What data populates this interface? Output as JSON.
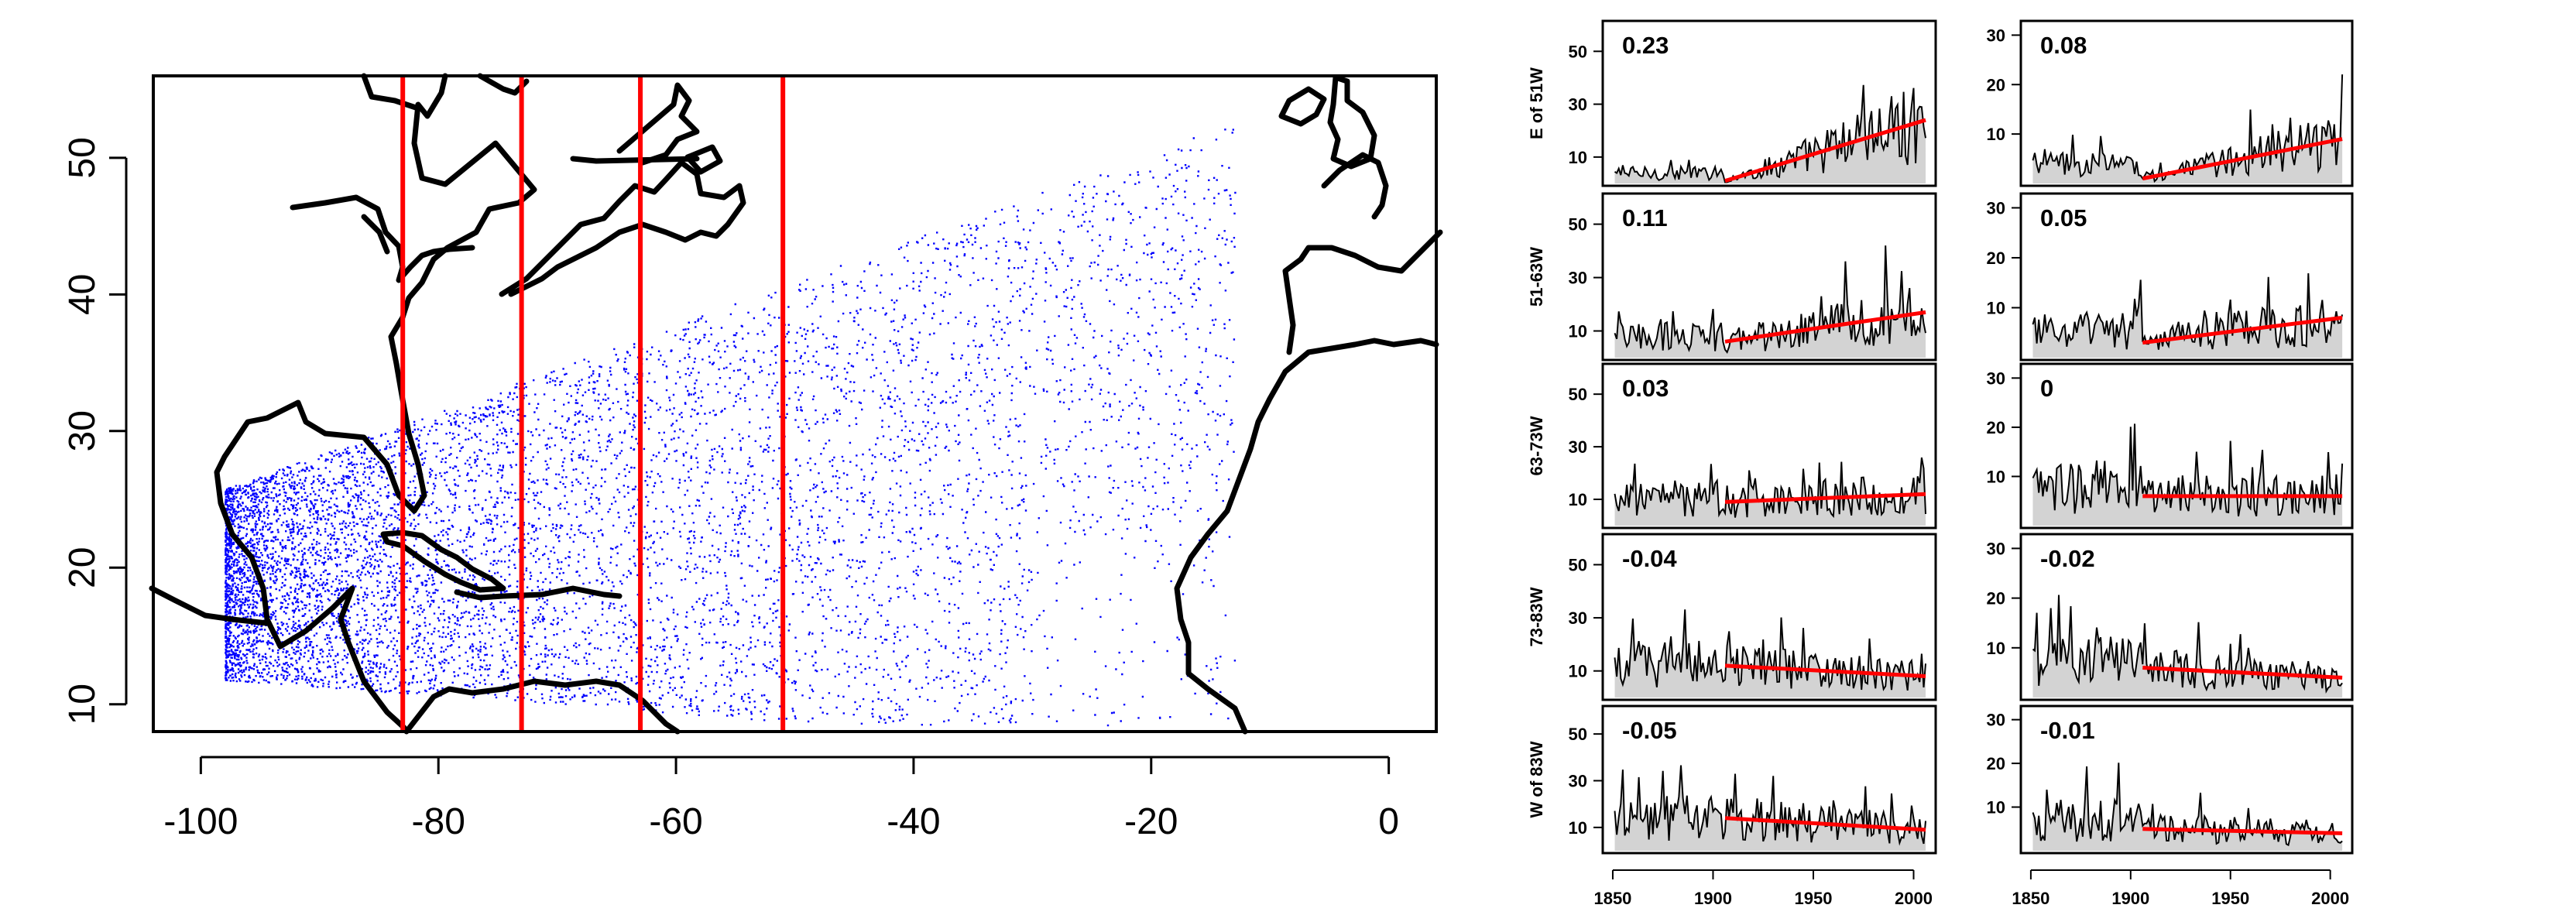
{
  "chart_data": [
    {
      "type": "scatter",
      "title": "",
      "xlabel": "",
      "ylabel": "",
      "xlim": [
        -104,
        4
      ],
      "ylim": [
        8,
        56
      ],
      "x_ticks": [
        -100,
        -80,
        -60,
        -40,
        -20,
        0
      ],
      "x_tick_labels": [
        "-100",
        "-80",
        "-60",
        "-40",
        "-20",
        "0"
      ],
      "y_ticks": [
        10,
        20,
        30,
        40,
        50
      ],
      "y_tick_labels": [
        "10",
        "20",
        "30",
        "40",
        "50"
      ],
      "points_color": "#0000ff",
      "points_description": "dense track points over the North Atlantic",
      "vertical_lines": {
        "x": [
          -83,
          -73,
          -63,
          -51
        ],
        "color": "#ff0000"
      },
      "grid": false,
      "legend": "none"
    },
    {
      "type": "line",
      "layout": "5 rows x 2 columns of time-series panels",
      "row_labels": [
        "E of 51W",
        "51-63W",
        "63-73W",
        "73-83W",
        "W of 83W"
      ],
      "x_ticks": [
        1850,
        1900,
        1950,
        2000
      ],
      "x_tick_labels": [
        "1850",
        "1900",
        "1950",
        "2000"
      ],
      "xlim": [
        1845,
        2011
      ],
      "line_color": "#000000",
      "fill_color": "#d3d3d3",
      "trend_color": "#ff0000",
      "trend_start_year": 1906,
      "columns": [
        {
          "ylim": [
            0,
            58
          ],
          "y_ticks": [
            10,
            30,
            50
          ],
          "panels": [
            {
              "row": "E of 51W",
              "slope_label": "0.23",
              "trend": [
                [
                  1906,
                  1
                ],
                [
                  2006,
                  24
                ]
              ]
            },
            {
              "row": "51-63W",
              "slope_label": "0.11",
              "trend": [
                [
                  1906,
                  6
                ],
                [
                  2006,
                  17
                ]
              ]
            },
            {
              "row": "63-73W",
              "slope_label": "0.03",
              "trend": [
                [
                  1906,
                  9
                ],
                [
                  2006,
                  12
                ]
              ]
            },
            {
              "row": "73-83W",
              "slope_label": "-0.04",
              "trend": [
                [
                  1906,
                  12
                ],
                [
                  2006,
                  8
                ]
              ]
            },
            {
              "row": "W of 83W",
              "slope_label": "-0.05",
              "trend": [
                [
                  1906,
                  14
                ],
                [
                  2006,
                  9
                ]
              ]
            }
          ]
        },
        {
          "ylim": [
            0,
            31
          ],
          "y_ticks": [
            10,
            20,
            30
          ],
          "panels": [
            {
              "row": "E of 51W",
              "slope_label": "0.08",
              "trend": [
                [
                  1906,
                  1
                ],
                [
                  2006,
                  9
                ]
              ]
            },
            {
              "row": "51-63W",
              "slope_label": "0.05",
              "trend": [
                [
                  1906,
                  3
                ],
                [
                  2006,
                  8
                ]
              ]
            },
            {
              "row": "63-73W",
              "slope_label": "0",
              "trend": [
                [
                  1906,
                  6
                ],
                [
                  2006,
                  6
                ]
              ]
            },
            {
              "row": "73-83W",
              "slope_label": "-0.02",
              "trend": [
                [
                  1906,
                  6
                ],
                [
                  2006,
                  4
                ]
              ]
            },
            {
              "row": "W of 83W",
              "slope_label": "-0.01",
              "trend": [
                [
                  1906,
                  5
                ],
                [
                  2006,
                  4
                ]
              ]
            }
          ]
        }
      ],
      "grid": false,
      "legend": "none"
    }
  ]
}
